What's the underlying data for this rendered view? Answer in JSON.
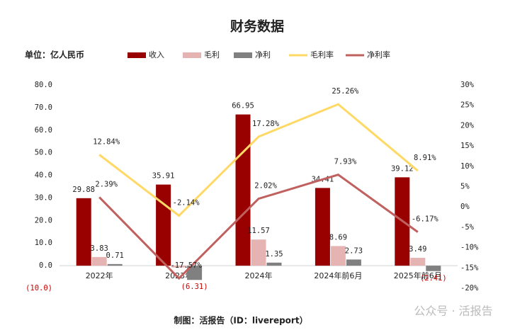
{
  "chart_data": {
    "type": "bar_line",
    "title": "财务数据",
    "unit_label": "单位：亿人民币",
    "footer": "制图：活报告（ID：livereport）",
    "watermark": "公众号 · 活报告",
    "categories": [
      "2022年",
      "2023年",
      "2024年",
      "2024年前6月",
      "2025年前6月"
    ],
    "series": [
      {
        "name": "收入",
        "type": "bar",
        "color": "#990000",
        "values": [
          29.88,
          35.91,
          66.95,
          34.41,
          39.12
        ],
        "value_labels": [
          "29.88",
          "35.91",
          "66.95",
          "34.41",
          "39.12"
        ]
      },
      {
        "name": "毛利",
        "type": "bar",
        "color": "#e6b3b3",
        "values": [
          3.83,
          -0.77,
          11.57,
          8.69,
          3.49
        ],
        "value_labels": [
          "3.83",
          null,
          "11.57",
          "8.69",
          "3.49"
        ]
      },
      {
        "name": "净利",
        "type": "bar",
        "color": "#808080",
        "values": [
          0.71,
          -6.31,
          1.35,
          2.73,
          -2.41
        ],
        "value_labels": [
          "0.71",
          "(6.31)",
          "1.35",
          "2.73",
          "(2.41)"
        ]
      },
      {
        "name": "毛利率",
        "type": "line",
        "axis": "y2",
        "color": "#ffd966",
        "values": [
          12.84,
          -2.14,
          17.28,
          25.26,
          8.91
        ],
        "value_labels": [
          "12.84%",
          "-2.14%",
          "17.28%",
          "25.26%",
          "8.91%"
        ]
      },
      {
        "name": "净利率",
        "type": "line",
        "axis": "y2",
        "color": "#c0605f",
        "values": [
          2.39,
          -17.57,
          2.02,
          7.93,
          -6.17
        ],
        "value_labels": [
          "2.39%",
          "-17.57%",
          "2.02%",
          "7.93%",
          "-6.17%"
        ]
      }
    ],
    "ylim": [
      -10,
      80
    ],
    "yticks": [
      {
        "value": -10,
        "label": "(10.0)"
      },
      {
        "value": 0,
        "label": "0.0"
      },
      {
        "value": 10,
        "label": "10.0"
      },
      {
        "value": 20,
        "label": "20.0"
      },
      {
        "value": 30,
        "label": "30.0"
      },
      {
        "value": 40,
        "label": "40.0"
      },
      {
        "value": 50,
        "label": "50.0"
      },
      {
        "value": 60,
        "label": "60.0"
      },
      {
        "value": 70,
        "label": "70.0"
      },
      {
        "value": 80,
        "label": "80.0"
      }
    ],
    "y2lim": [
      -20,
      30
    ],
    "y2ticks": [
      {
        "value": -20,
        "label": "-20%"
      },
      {
        "value": -15,
        "label": "-15%"
      },
      {
        "value": -10,
        "label": "-10%"
      },
      {
        "value": -5,
        "label": "-5%"
      },
      {
        "value": 0,
        "label": "0%"
      },
      {
        "value": 5,
        "label": "5%"
      },
      {
        "value": 10,
        "label": "10%"
      },
      {
        "value": 15,
        "label": "15%"
      },
      {
        "value": 20,
        "label": "20%"
      },
      {
        "value": 25,
        "label": "25%"
      },
      {
        "value": 30,
        "label": "30%"
      }
    ],
    "negative_tick_color": "#cc0000"
  }
}
